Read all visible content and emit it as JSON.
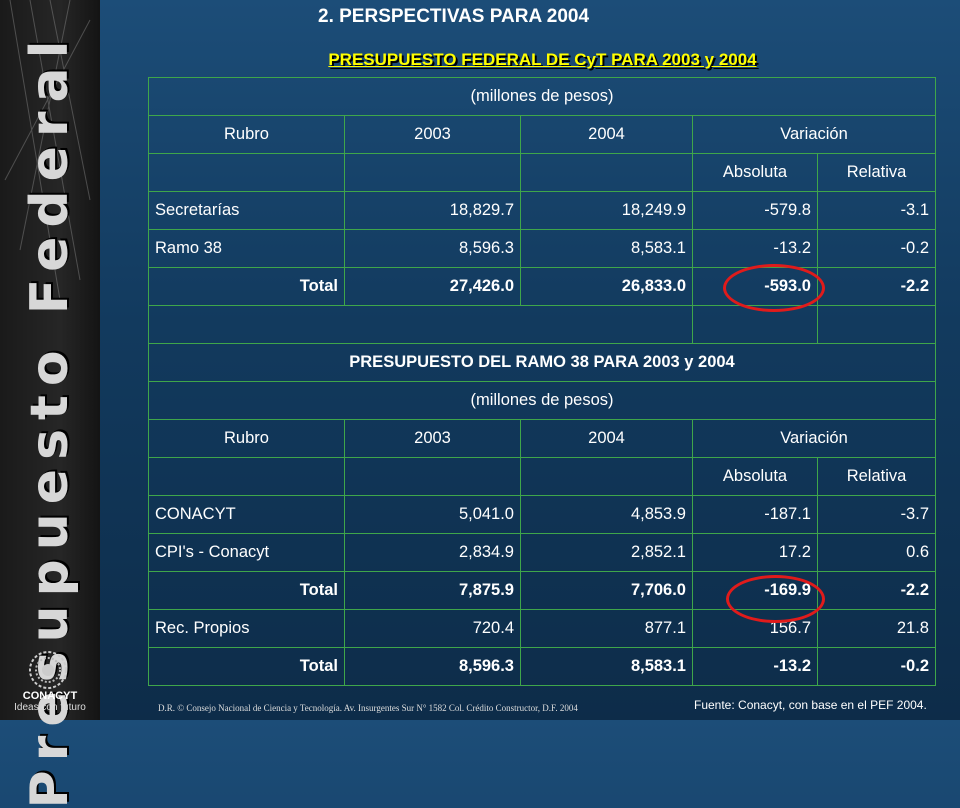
{
  "section_title": "2.   PERSPECTIVAS PARA 2004",
  "sidebar": {
    "vertical_title": "Presupuesto Federal",
    "logo_name": "CONACYT",
    "logo_tagline": "Ideas con futuro"
  },
  "table1": {
    "title": "PRESUPUESTO FEDERAL DE CyT PARA 2003 y 2004",
    "units": "(millones de pesos)",
    "headers": {
      "rubro": "Rubro",
      "y2003": "2003",
      "y2004": "2004",
      "variacion": "Variación",
      "absoluta": "Absoluta",
      "relativa": "Relativa"
    },
    "rows": [
      [
        "Secretarías",
        "18,829.7",
        "18,249.9",
        "-579.8",
        "-3.1"
      ],
      [
        "Ramo 38",
        "8,596.3",
        "8,583.1",
        "-13.2",
        "-0.2"
      ],
      [
        "Total",
        "27,426.0",
        "26,833.0",
        "-593.0",
        "-2.2"
      ]
    ]
  },
  "table2": {
    "title": "PRESUPUESTO DEL RAMO 38 PARA 2003 y 2004",
    "units": "(millones de pesos)",
    "headers": {
      "rubro": "Rubro",
      "y2003": "2003",
      "y2004": "2004",
      "variacion": "Variación",
      "absoluta": "Absoluta",
      "relativa": "Relativa"
    },
    "rows": [
      [
        "CONACYT",
        "5,041.0",
        "4,853.9",
        "-187.1",
        "-3.7"
      ],
      [
        "CPI's - Conacyt",
        "2,834.9",
        "2,852.1",
        "17.2",
        "0.6"
      ],
      [
        "Total",
        "7,875.9",
        "7,706.0",
        "-169.9",
        "-2.2"
      ],
      [
        "Rec. Propios",
        "720.4",
        "877.1",
        "156.7",
        "21.8"
      ],
      [
        "Total",
        "8,596.3",
        "8,583.1",
        "-13.2",
        "-0.2"
      ]
    ]
  },
  "footer": "D.R. © Consejo Nacional de Ciencia y Tecnología. Av. Insurgentes Sur N° 1582 Col. Crédito Constructor, D.F.   2004",
  "source": "Fuente: Conacyt, con base en el PEF 2004.",
  "colors": {
    "background": "#164570",
    "grid": "#3fa64a",
    "title": "#ffff00",
    "highlight_circle": "#e01b1b"
  }
}
